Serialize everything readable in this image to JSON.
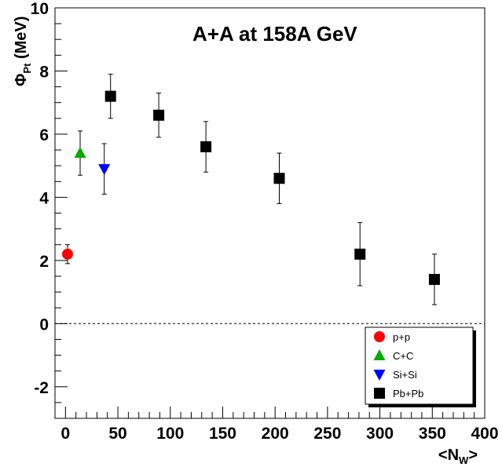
{
  "chart_data": {
    "type": "scatter",
    "title": "A+A at 158A GeV",
    "xlabel": {
      "main": "<N",
      "sub": "W",
      "end": ">"
    },
    "ylabel": {
      "main": "Φ",
      "sub": "Pt",
      "end": " (MeV)"
    },
    "xlim": [
      -10,
      400
    ],
    "ylim": [
      -3,
      10
    ],
    "x_ticks": [
      0,
      50,
      100,
      150,
      200,
      250,
      300,
      350,
      400
    ],
    "y_ticks": [
      -2,
      0,
      2,
      4,
      6,
      8,
      10
    ],
    "reference_line": 0,
    "legend_position": "bottom-right",
    "series": [
      {
        "name": "p+p",
        "marker": "circle",
        "color": "#ff0000",
        "points": [
          {
            "x": 2,
            "y": 2.2,
            "err": 0.3
          }
        ]
      },
      {
        "name": "C+C",
        "marker": "triangle-up",
        "color": "#00aa00",
        "points": [
          {
            "x": 14,
            "y": 5.4,
            "err": 0.7
          }
        ]
      },
      {
        "name": "Si+Si",
        "marker": "triangle-down",
        "color": "#0000ff",
        "points": [
          {
            "x": 37,
            "y": 4.9,
            "err": 0.8
          }
        ]
      },
      {
        "name": "Pb+Pb",
        "marker": "square",
        "color": "#000000",
        "points": [
          {
            "x": 43,
            "y": 7.2,
            "err": 0.7
          },
          {
            "x": 89,
            "y": 6.6,
            "err": 0.7
          },
          {
            "x": 134,
            "y": 5.6,
            "err": 0.8
          },
          {
            "x": 204,
            "y": 4.6,
            "err": 0.8
          },
          {
            "x": 281,
            "y": 2.2,
            "err": 1.0
          },
          {
            "x": 352,
            "y": 1.4,
            "err": 0.8
          }
        ]
      }
    ]
  }
}
